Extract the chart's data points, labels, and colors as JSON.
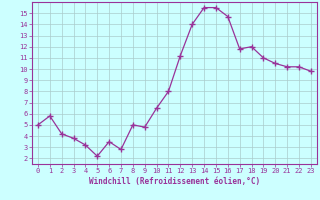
{
  "x": [
    0,
    1,
    2,
    3,
    4,
    5,
    6,
    7,
    8,
    9,
    10,
    11,
    12,
    13,
    14,
    15,
    16,
    17,
    18,
    19,
    20,
    21,
    22,
    23
  ],
  "y": [
    5.0,
    5.8,
    4.2,
    3.8,
    3.2,
    2.2,
    3.5,
    2.8,
    5.0,
    4.8,
    6.5,
    8.0,
    11.2,
    14.0,
    15.5,
    15.5,
    14.7,
    11.8,
    12.0,
    11.0,
    10.5,
    10.2,
    10.2,
    9.8
  ],
  "line_color": "#993399",
  "marker": "+",
  "marker_size": 4,
  "background_color": "#ccffff",
  "grid_color": "#aacccc",
  "xlabel": "Windchill (Refroidissement éolien,°C)",
  "ylabel": "",
  "xlim": [
    -0.5,
    23.5
  ],
  "ylim": [
    1.5,
    16.0
  ],
  "yticks": [
    2,
    3,
    4,
    5,
    6,
    7,
    8,
    9,
    10,
    11,
    12,
    13,
    14,
    15
  ],
  "xticks": [
    0,
    1,
    2,
    3,
    4,
    5,
    6,
    7,
    8,
    9,
    10,
    11,
    12,
    13,
    14,
    15,
    16,
    17,
    18,
    19,
    20,
    21,
    22,
    23
  ],
  "tick_color": "#993399",
  "label_color": "#993399",
  "spine_color": "#993399",
  "tick_fontsize": 5.0,
  "xlabel_fontsize": 5.5
}
